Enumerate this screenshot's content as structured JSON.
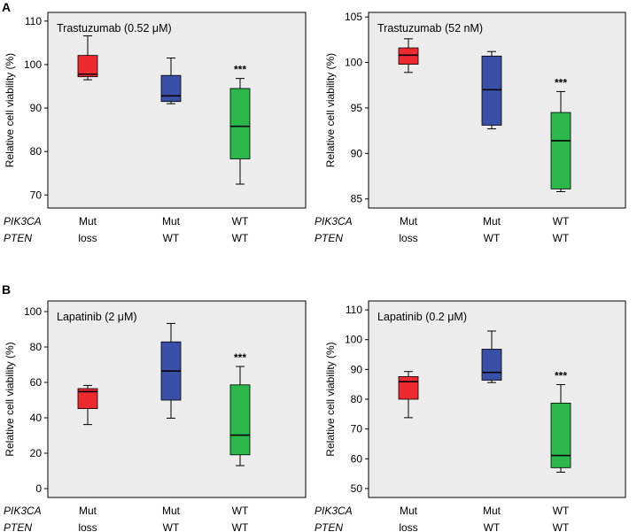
{
  "panel_letters": [
    "A",
    "B"
  ],
  "genotype_headers": {
    "pik3ca": "PIK3CA",
    "pten": "PTEN"
  },
  "colors": {
    "mut_loss": "#ee2a2e",
    "mut_wt": "#3a50a8",
    "wt_wt": "#2bb74a",
    "background": "#ececec"
  },
  "chart_data": [
    {
      "type": "box",
      "panel": "A",
      "title": "Trastuzumab (0.52 μM)",
      "ylabel": "Relative cell viability (%)",
      "ylim": [
        67,
        112
      ],
      "yticks": [
        70,
        80,
        90,
        100,
        110
      ],
      "groups": [
        {
          "pik3ca": "Mut",
          "pten": "loss",
          "color": "#ee2a2e",
          "min": 96.5,
          "q1": 97.2,
          "median": 97.8,
          "q3": 102.1,
          "max": 106.6,
          "sig": ""
        },
        {
          "pik3ca": "Mut",
          "pten": "WT",
          "color": "#3a50a8",
          "min": 91.0,
          "q1": 91.5,
          "median": 92.8,
          "q3": 97.5,
          "max": 101.5,
          "sig": ""
        },
        {
          "pik3ca": "WT",
          "pten": "WT",
          "color": "#2bb74a",
          "min": 72.5,
          "q1": 78.3,
          "median": 85.8,
          "q3": 94.5,
          "max": 96.8,
          "sig": "***"
        }
      ]
    },
    {
      "type": "box",
      "panel": "A",
      "title": "Trastuzumab (52 nM)",
      "ylabel": "Relative cell viability (%)",
      "ylim": [
        84,
        105.5
      ],
      "yticks": [
        85,
        90,
        95,
        100,
        105
      ],
      "groups": [
        {
          "pik3ca": "Mut",
          "pten": "loss",
          "color": "#ee2a2e",
          "min": 98.9,
          "q1": 99.8,
          "median": 100.8,
          "q3": 101.6,
          "max": 102.6,
          "sig": ""
        },
        {
          "pik3ca": "Mut",
          "pten": "WT",
          "color": "#3a50a8",
          "min": 92.7,
          "q1": 93.1,
          "median": 97.0,
          "q3": 100.7,
          "max": 101.2,
          "sig": ""
        },
        {
          "pik3ca": "WT",
          "pten": "WT",
          "color": "#2bb74a",
          "min": 85.8,
          "q1": 86.1,
          "median": 91.4,
          "q3": 94.5,
          "max": 96.8,
          "sig": "***"
        }
      ]
    },
    {
      "type": "box",
      "panel": "B",
      "title": "Lapatinib (2 μM)",
      "ylabel": "Relative cell viability (%)",
      "ylim": [
        -5,
        106
      ],
      "yticks": [
        0,
        20,
        40,
        60,
        80,
        100
      ],
      "groups": [
        {
          "pik3ca": "Mut",
          "pten": "loss",
          "color": "#ee2a2e",
          "min": 36.2,
          "q1": 45.2,
          "median": 54.8,
          "q3": 56.5,
          "max": 58.3,
          "sig": ""
        },
        {
          "pik3ca": "Mut",
          "pten": "WT",
          "color": "#3a50a8",
          "min": 39.8,
          "q1": 50.0,
          "median": 66.4,
          "q3": 82.9,
          "max": 93.3,
          "sig": ""
        },
        {
          "pik3ca": "WT",
          "pten": "WT",
          "color": "#2bb74a",
          "min": 13.0,
          "q1": 19.1,
          "median": 30.2,
          "q3": 58.6,
          "max": 69.0,
          "sig": "***"
        }
      ]
    },
    {
      "type": "box",
      "panel": "B",
      "title": "Lapatinib (0.2 μM)",
      "ylabel": "Relative cell viability (%)",
      "ylim": [
        47,
        113
      ],
      "yticks": [
        50,
        60,
        70,
        80,
        90,
        100,
        110
      ],
      "groups": [
        {
          "pik3ca": "Mut",
          "pten": "loss",
          "color": "#ee2a2e",
          "min": 73.8,
          "q1": 80.0,
          "median": 85.9,
          "q3": 87.6,
          "max": 89.3,
          "sig": ""
        },
        {
          "pik3ca": "Mut",
          "pten": "WT",
          "color": "#3a50a8",
          "min": 85.6,
          "q1": 86.4,
          "median": 89.0,
          "q3": 96.8,
          "max": 102.9,
          "sig": ""
        },
        {
          "pik3ca": "WT",
          "pten": "WT",
          "color": "#2bb74a",
          "min": 55.5,
          "q1": 57.0,
          "median": 61.1,
          "q3": 78.7,
          "max": 84.9,
          "sig": "***"
        }
      ]
    }
  ]
}
